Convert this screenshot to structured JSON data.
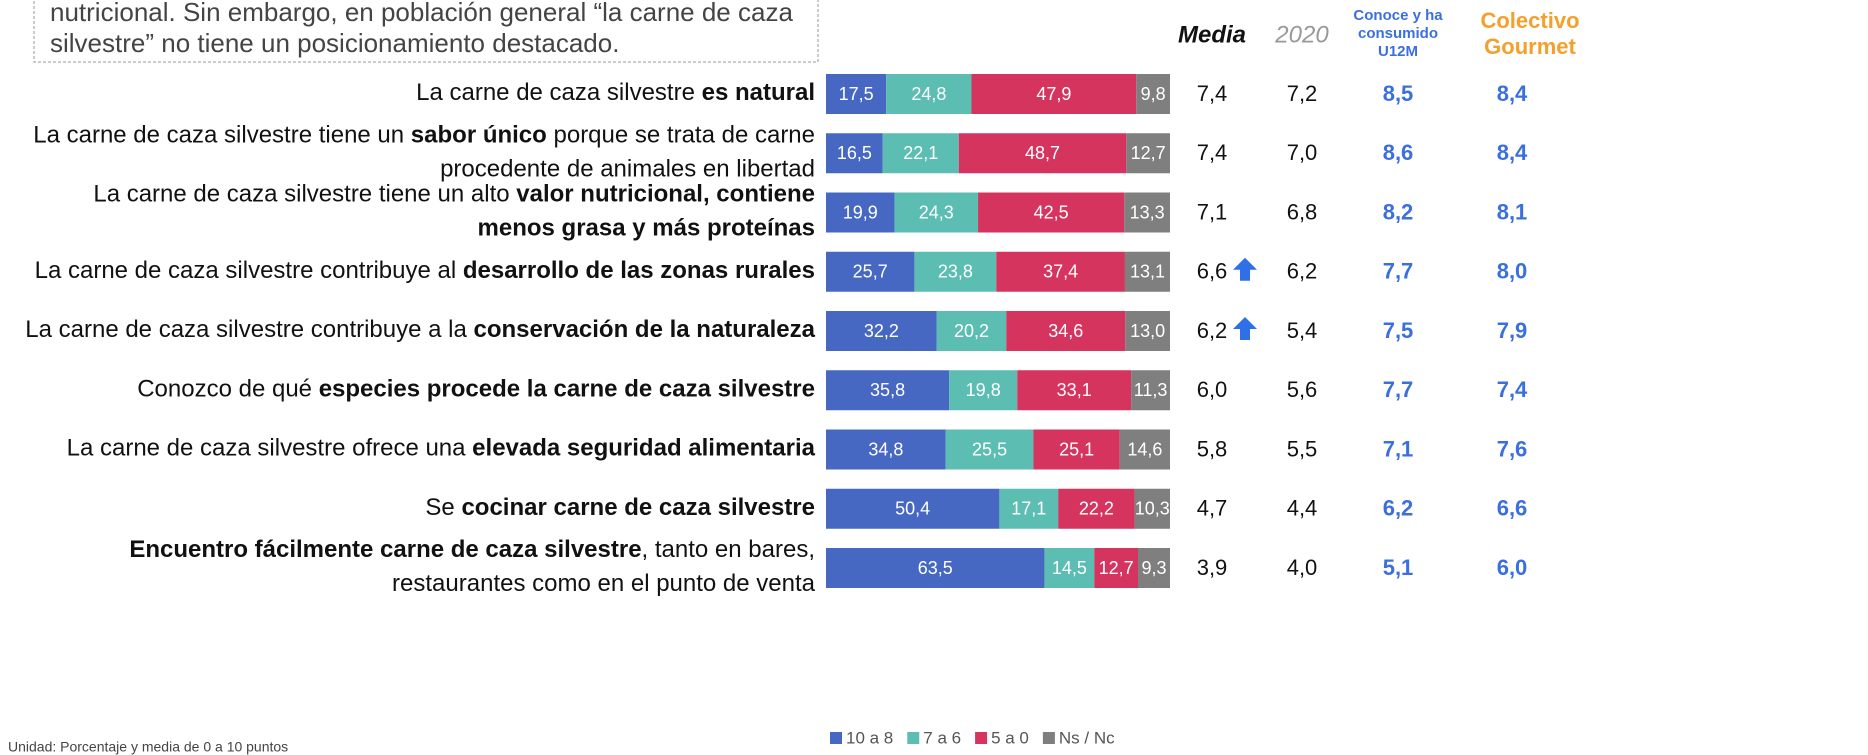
{
  "intro": {
    "lines": [
      "nutricional. Sin embargo, en población general “la carne de caza",
      "silvestre” no  tiene un posicionamiento destacado."
    ]
  },
  "footnote": "Unidad: Porcentaje y media de 0 a 10 puntos",
  "chart_data": {
    "type": "bar",
    "orientation": "horizontal",
    "stacked": true,
    "xlim": [
      0,
      100
    ],
    "categories": [
      [
        [
          {
            "text": "La carne de caza silvestre "
          },
          {
            "text": "es natural",
            "bold": true
          }
        ]
      ],
      [
        [
          {
            "text": "La carne de caza silvestre tiene un "
          },
          {
            "text": "sabor único",
            "bold": true
          },
          {
            "text": " porque se trata de carne"
          }
        ],
        [
          {
            "text": "procedente de animales en libertad"
          }
        ]
      ],
      [
        [
          {
            "text": "La carne de caza silvestre tiene un alto "
          },
          {
            "text": "valor nutricional, contiene",
            "bold": true
          }
        ],
        [
          {
            "text": "menos grasa y más proteínas",
            "bold": true
          }
        ]
      ],
      [
        [
          {
            "text": "La carne de caza silvestre contribuye al "
          },
          {
            "text": "desarrollo de las zonas rurales",
            "bold": true
          }
        ]
      ],
      [
        [
          {
            "text": "La carne de caza silvestre contribuye a la "
          },
          {
            "text": "conservación de la naturaleza",
            "bold": true
          }
        ]
      ],
      [
        [
          {
            "text": "Conozco de qué "
          },
          {
            "text": "especies procede la carne de caza silvestre",
            "bold": true
          }
        ]
      ],
      [
        [
          {
            "text": "La carne de caza silvestre ofrece una "
          },
          {
            "text": "elevada seguridad alimentaria",
            "bold": true
          }
        ]
      ],
      [
        [
          {
            "text": "Se "
          },
          {
            "text": "cocinar carne de caza silvestre",
            "bold": true
          }
        ]
      ],
      [
        [
          {
            "text": "Encuentro fácilmente carne de caza silvestre",
            "bold": true
          },
          {
            "text": ", tanto en bares,"
          }
        ],
        [
          {
            "text": "restaurantes como en el punto de venta"
          }
        ]
      ]
    ],
    "series": [
      {
        "name": "10 a 8",
        "color": "#4668c2",
        "values": [
          17.5,
          16.5,
          19.9,
          25.7,
          32.2,
          35.8,
          34.8,
          50.4,
          63.5
        ],
        "value_labels": [
          "17,5",
          "16,5",
          "19,9",
          "25,7",
          "32,2",
          "35,8",
          "34,8",
          "50,4",
          "63,5"
        ]
      },
      {
        "name": "7 a 6",
        "color": "#5cbdb3",
        "values": [
          24.8,
          22.1,
          24.3,
          23.8,
          20.2,
          19.8,
          25.5,
          17.1,
          14.5
        ],
        "value_labels": [
          "24,8",
          "22,1",
          "24,3",
          "23,8",
          "20,2",
          "19,8",
          "25,5",
          "17,1",
          "14,5"
        ]
      },
      {
        "name": "5 a 0",
        "color": "#d5345f",
        "values": [
          47.9,
          48.7,
          42.5,
          37.4,
          34.6,
          33.1,
          25.1,
          22.2,
          12.7
        ],
        "value_labels": [
          "47,9",
          "48,7",
          "42,5",
          "37,4",
          "34,6",
          "33,1",
          "25,1",
          "22,2",
          "12,7"
        ]
      },
      {
        "name": "Ns / Nc",
        "color": "#7f7f7f",
        "values": [
          9.8,
          12.7,
          13.3,
          13.1,
          13.0,
          11.3,
          14.6,
          10.3,
          9.3
        ],
        "value_labels": [
          "9,8",
          "12,7",
          "13,3",
          "13,1",
          "13,0",
          "11,3",
          "14,6",
          "10,3",
          "9,3"
        ]
      }
    ],
    "columns": [
      {
        "header": [
          "Media"
        ],
        "header_color": "#111",
        "header_weight": "bold",
        "header_style": "italic",
        "header_size": 24,
        "color": "#111",
        "weight": "normal",
        "values": [
          "7,4",
          "7,4",
          "7,1",
          "6,6",
          "6,2",
          "6,0",
          "5,8",
          "4,7",
          "3,9"
        ],
        "trend": [
          null,
          null,
          null,
          "up",
          "up",
          null,
          null,
          null,
          null
        ]
      },
      {
        "header": [
          "2020"
        ],
        "header_color": "#999",
        "header_weight": "normal",
        "header_style": "italic",
        "header_size": 24,
        "color": "#111",
        "weight": "normal",
        "values": [
          "7,2",
          "7,0",
          "6,8",
          "6,2",
          "5,4",
          "5,6",
          "5,5",
          "4,4",
          "4,0"
        ]
      },
      {
        "header": [
          "Conoce y ha",
          "consumido",
          "U12M"
        ],
        "header_color": "#3b6fe0",
        "header_weight": "bold",
        "header_style": "normal",
        "header_size": 15,
        "color": "#3b6fe0",
        "weight": "bold",
        "values": [
          "8,5",
          "8,6",
          "8,2",
          "7,7",
          "7,5",
          "7,7",
          "7,1",
          "6,2",
          "5,1"
        ]
      },
      {
        "header": [
          "Colectivo",
          "Gourmet"
        ],
        "header_color": "#f4a02c",
        "header_weight": "bold",
        "header_style": "normal",
        "header_size": 22,
        "color": "#3b6fe0",
        "weight": "bold",
        "values": [
          "8,4",
          "8,4",
          "8,1",
          "8,0",
          "7,9",
          "7,4",
          "7,6",
          "6,6",
          "6,0"
        ]
      }
    ],
    "legend": "bottom"
  }
}
